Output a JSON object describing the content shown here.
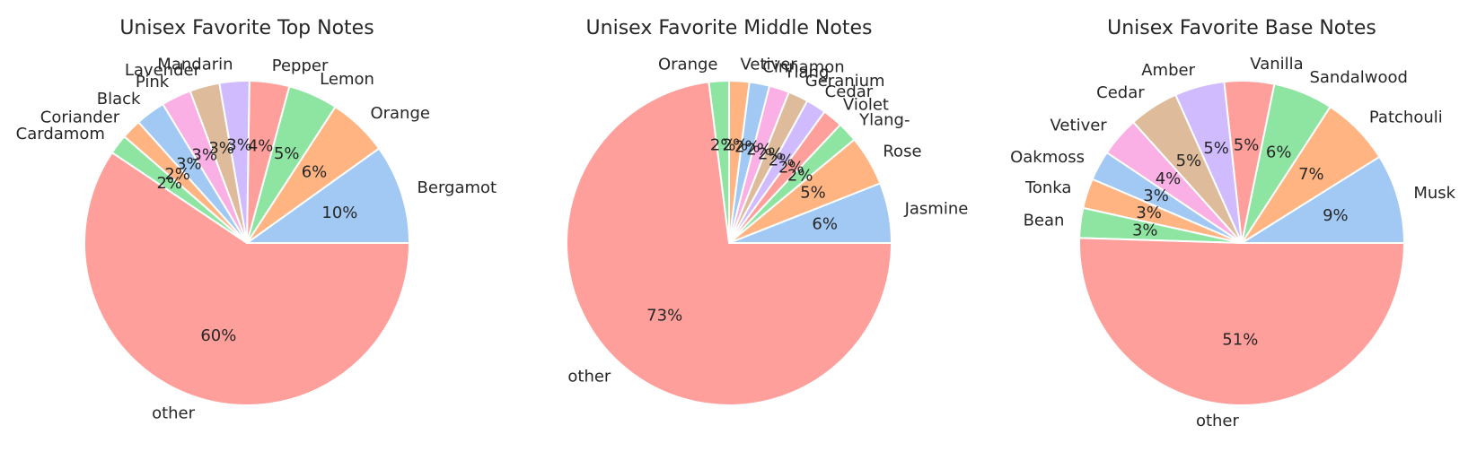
{
  "chart_data": [
    {
      "type": "pie",
      "title": "Unisex Favorite Top Notes",
      "start_angle_deg": 0,
      "direction": "counterclockwise",
      "labels": [
        "Bergamot",
        "Orange",
        "Lemon",
        "Pepper",
        "Mandarin",
        "Lavender",
        "Pink",
        "Black",
        "Coriander",
        "Cardamom",
        "other"
      ],
      "values": [
        10,
        6,
        5,
        4,
        3,
        3,
        3,
        3,
        2,
        2,
        60
      ],
      "pct_labels": [
        "10%",
        "6%",
        "5%",
        "4%",
        "3%",
        "3%",
        "3%",
        "3%",
        "2%",
        "2%",
        "60%"
      ],
      "colors": [
        "#a1c9f4",
        "#ffb482",
        "#8de5a1",
        "#ff9f9b",
        "#d0bbff",
        "#debb9b",
        "#fab0e4",
        "#a1c9f4",
        "#ffb482",
        "#8de5a1",
        "#ff9f9b"
      ]
    },
    {
      "type": "pie",
      "title": "Unisex Favorite Middle Notes",
      "start_angle_deg": 0,
      "direction": "counterclockwise",
      "labels": [
        "Jasmine",
        "Rose",
        "Ylang-",
        "Violet",
        "Cedar",
        "Geranium",
        "Ylang",
        "Cinnamon",
        "Vetiver",
        "Orange",
        "other"
      ],
      "values": [
        6,
        5,
        2,
        2,
        2,
        2,
        2,
        2,
        2,
        2,
        73
      ],
      "pct_labels": [
        "6%",
        "5%",
        "2%",
        "2%",
        "2%",
        "2%",
        "2%",
        "2%",
        "2%",
        "2%",
        "73%"
      ],
      "colors": [
        "#a1c9f4",
        "#ffb482",
        "#8de5a1",
        "#ff9f9b",
        "#d0bbff",
        "#debb9b",
        "#fab0e4",
        "#a1c9f4",
        "#ffb482",
        "#8de5a1",
        "#ff9f9b"
      ]
    },
    {
      "type": "pie",
      "title": "Unisex Favorite Base Notes",
      "start_angle_deg": 0,
      "direction": "counterclockwise",
      "labels": [
        "Musk",
        "Patchouli",
        "Sandalwood",
        "Vanilla",
        "Amber",
        "Cedar",
        "Vetiver",
        "Oakmoss",
        "Tonka",
        "Bean",
        "other"
      ],
      "values": [
        9,
        7,
        6,
        5,
        5,
        5,
        4,
        3,
        3,
        3,
        51
      ],
      "pct_labels": [
        "9%",
        "7%",
        "6%",
        "5%",
        "5%",
        "5%",
        "4%",
        "3%",
        "3%",
        "3%",
        "51%"
      ],
      "colors": [
        "#a1c9f4",
        "#ffb482",
        "#8de5a1",
        "#ff9f9b",
        "#d0bbff",
        "#debb9b",
        "#fab0e4",
        "#a1c9f4",
        "#ffb482",
        "#8de5a1",
        "#ff9f9b"
      ]
    }
  ]
}
